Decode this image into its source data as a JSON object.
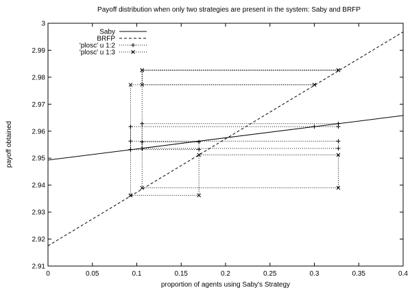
{
  "chart_data": {
    "type": "line",
    "title": "Payoff distribution when only two strategies are present in the system: Saby and BRFP",
    "xlabel": "proportion of agents using Saby's Strategy",
    "ylabel": "payoff obtained",
    "xlim": [
      0,
      0.4
    ],
    "ylim": [
      2.91,
      3.0
    ],
    "x_ticks": [
      0,
      0.05,
      0.1,
      0.15,
      0.2,
      0.25,
      0.3,
      0.35,
      0.4
    ],
    "x_tick_labels": [
      "0",
      "0.05",
      "0.1",
      "0.15",
      "0.2",
      "0.25",
      "0.3",
      "0.35",
      "0.4"
    ],
    "y_ticks": [
      2.91,
      2.92,
      2.93,
      2.94,
      2.95,
      2.96,
      2.97,
      2.98,
      2.99,
      3.0
    ],
    "y_tick_labels": [
      "2.91",
      "2.92",
      "2.93",
      "2.94",
      "2.95",
      "2.96",
      "2.97",
      "2.98",
      "2.99",
      "3"
    ],
    "grid": false,
    "legend_position": "top-left",
    "series": [
      {
        "name": "Saby",
        "style": "solid",
        "marker": "none",
        "x": [
          0,
          0.4
        ],
        "y": [
          2.9493,
          2.9658
        ]
      },
      {
        "name": "BRFP",
        "style": "dashed",
        "marker": "none",
        "x": [
          0,
          0.4
        ],
        "y": [
          2.9175,
          2.9968
        ]
      },
      {
        "name": "'plosc' u 1:2",
        "style": "dotted",
        "marker": "plus",
        "x": [
          0.093,
          0.093,
          0.327,
          0.327,
          0.106,
          0.106,
          0.327,
          0.327,
          0.093,
          0.093,
          0.17,
          0.17,
          0.106,
          0.106,
          0.3
        ],
        "y": [
          2.9532,
          2.9617,
          2.9617,
          2.9628,
          2.9628,
          2.9536,
          2.9536,
          2.9563,
          2.9563,
          2.9532,
          2.9532,
          2.956,
          2.956,
          2.9536,
          2.9617
        ]
      },
      {
        "name": "'plosc' u 1:3",
        "style": "dotted",
        "marker": "cross",
        "x": [
          0.093,
          0.093,
          0.3,
          0.3,
          0.106,
          0.106,
          0.327,
          0.327,
          0.106,
          0.106,
          0.327,
          0.327,
          0.17,
          0.17,
          0.093
        ],
        "y": [
          2.9362,
          2.9772,
          2.9772,
          2.9772,
          2.9772,
          2.9826,
          2.9826,
          2.9826,
          2.9826,
          2.939,
          2.939,
          2.9512,
          2.9512,
          2.9362,
          2.9362
        ]
      }
    ]
  }
}
